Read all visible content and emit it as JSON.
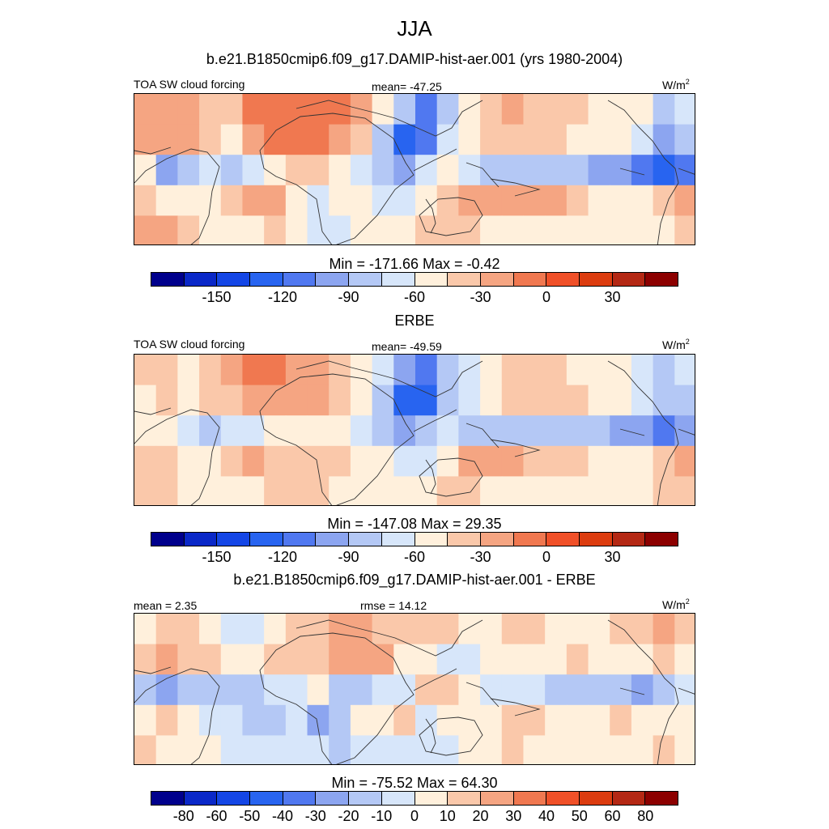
{
  "title": "JJA",
  "subtitle_model": "b.e21.B1850cmip6.f09_g17.DAMIP-hist-aer.001 (yrs 1980-2004)",
  "subtitle_obs": "ERBE",
  "subtitle_diff": "b.e21.B1850cmip6.f09_g17.DAMIP-hist-aer.001 - ERBE",
  "units_base": "W/m",
  "units_exp": "2",
  "colors": {
    "abs": [
      "#00008c",
      "#0a28c8",
      "#1446e6",
      "#2864f0",
      "#5078f0",
      "#8ca5f0",
      "#b4c8f5",
      "#d7e6fa",
      "#fff0dc",
      "#fac8aa",
      "#f5a582",
      "#f07850",
      "#f05028",
      "#dc3c0f",
      "#b42814",
      "#8c0000"
    ],
    "diff": [
      "#00008c",
      "#0a28c8",
      "#1446e6",
      "#2864f0",
      "#5078f0",
      "#8ca5f0",
      "#b4c8f5",
      "#d7e6fa",
      "#fff0dc",
      "#fac8aa",
      "#f5a582",
      "#f07850",
      "#f05028",
      "#dc3c0f",
      "#b42814",
      "#8c0000"
    ],
    "land_line": "#333333"
  },
  "chart_data": [
    {
      "type": "heatmap",
      "name": "model",
      "left_label": "TOA SW cloud forcing",
      "center_label": "mean= -47.25",
      "minmax": "Min = -171.66 Max =  -0.42",
      "colorbar_ticks": [
        "-150",
        "-120",
        "-90",
        "-60",
        "-30",
        "0",
        "30"
      ],
      "mean": -47.25,
      "min": -171.66,
      "max": -0.42,
      "levels": [
        -165,
        -150,
        -135,
        -120,
        -105,
        -90,
        -75,
        -60,
        -45,
        -30,
        -15,
        0,
        15,
        30,
        45
      ],
      "cells": [
        [
          -30,
          -20,
          -25,
          -35,
          -45,
          -15,
          -10,
          -5,
          -10,
          -15,
          -30,
          -60,
          -90,
          -120,
          -90,
          -60,
          -40,
          -30,
          -35,
          -45,
          -45,
          -50,
          -55,
          -60,
          -90,
          -75
        ],
        [
          -25,
          -20,
          -30,
          -40,
          -55,
          -20,
          -10,
          -5,
          -10,
          -20,
          -40,
          -90,
          -135,
          -120,
          -75,
          -60,
          -45,
          -40,
          -40,
          -45,
          -50,
          -55,
          -60,
          -75,
          -105,
          -90
        ],
        [
          -60,
          -105,
          -90,
          -75,
          -90,
          -75,
          -60,
          -45,
          -45,
          -60,
          -75,
          -90,
          -105,
          -75,
          -60,
          -75,
          -90,
          -90,
          -90,
          -90,
          -90,
          -105,
          -105,
          -120,
          -135,
          -120
        ],
        [
          -40,
          -50,
          -55,
          -55,
          -45,
          -25,
          -30,
          -50,
          -70,
          -55,
          -60,
          -65,
          -75,
          -55,
          -45,
          -25,
          -20,
          -20,
          -25,
          -30,
          -40,
          -50,
          -60,
          -55,
          -45,
          -25
        ],
        [
          -25,
          -30,
          -40,
          -50,
          -60,
          -55,
          -40,
          -50,
          -70,
          -65,
          -60,
          -55,
          -50,
          -40,
          -35,
          -45,
          -50,
          -50,
          -50,
          -50,
          -55,
          -55,
          -60,
          -55,
          -50,
          -40
        ]
      ]
    },
    {
      "type": "heatmap",
      "name": "ERBE",
      "left_label": "TOA SW cloud forcing",
      "center_label": "mean= -49.59",
      "minmax": "Min = -147.08 Max =  29.35",
      "colorbar_ticks": [
        "-150",
        "-120",
        "-90",
        "-60",
        "-30",
        "0",
        "30"
      ],
      "mean": -49.59,
      "min": -147.08,
      "max": 29.35,
      "levels": [
        -165,
        -150,
        -135,
        -120,
        -105,
        -90,
        -75,
        -60,
        -45,
        -30,
        -15,
        0,
        15,
        30,
        45
      ],
      "cells": [
        [
          -45,
          -40,
          -50,
          -35,
          -25,
          -15,
          -15,
          -20,
          -20,
          -35,
          -55,
          -75,
          -105,
          -120,
          -90,
          -75,
          -60,
          -45,
          -40,
          -45,
          -50,
          -55,
          -60,
          -75,
          -90,
          -70
        ],
        [
          -50,
          -45,
          -55,
          -45,
          -35,
          -20,
          -20,
          -25,
          -30,
          -40,
          -60,
          -90,
          -135,
          -135,
          -90,
          -70,
          -55,
          -45,
          -40,
          -40,
          -45,
          -50,
          -60,
          -70,
          -90,
          -80
        ],
        [
          -55,
          -60,
          -75,
          -80,
          -75,
          -65,
          -60,
          -55,
          -50,
          -60,
          -75,
          -90,
          -105,
          -90,
          -75,
          -80,
          -80,
          -80,
          -80,
          -80,
          -80,
          -90,
          -95,
          -105,
          -120,
          -100
        ],
        [
          -35,
          -40,
          -50,
          -55,
          -45,
          -30,
          -35,
          -45,
          -45,
          -45,
          -55,
          -60,
          -70,
          -65,
          -50,
          -30,
          -25,
          -30,
          -35,
          -35,
          -40,
          -50,
          -55,
          -50,
          -45,
          -30
        ],
        [
          -40,
          -45,
          -50,
          -55,
          -55,
          -50,
          -40,
          -40,
          -45,
          -50,
          -50,
          -55,
          -55,
          -50,
          -40,
          -45,
          -50,
          -55,
          -55,
          -55,
          -55,
          -55,
          -55,
          -50,
          -45,
          -40
        ]
      ]
    },
    {
      "type": "heatmap",
      "name": "difference",
      "left_label": "mean =   2.35",
      "center_label": "rmse =  14.12",
      "minmax": "Min = -75.52 Max =  64.30",
      "colorbar_ticks": [
        "-80",
        "-60",
        "-50",
        "-40",
        "-30",
        "-20",
        "-10",
        "0",
        "10",
        "20",
        "30",
        "40",
        "50",
        "60",
        "80"
      ],
      "mean": 2.35,
      "rmse": 14.12,
      "min": -75.52,
      "max": 64.3,
      "levels": [
        -80,
        -60,
        -50,
        -40,
        -30,
        -20,
        -10,
        0,
        10,
        20,
        30,
        40,
        50,
        60,
        80
      ],
      "cells": [
        [
          5,
          10,
          15,
          0,
          -10,
          -5,
          5,
          10,
          15,
          20,
          25,
          15,
          10,
          15,
          10,
          5,
          5,
          10,
          15,
          0,
          5,
          5,
          10,
          15,
          20,
          10
        ],
        [
          15,
          20,
          15,
          10,
          5,
          5,
          10,
          15,
          10,
          20,
          25,
          20,
          5,
          5,
          -5,
          -5,
          0,
          5,
          5,
          5,
          10,
          5,
          5,
          5,
          10,
          5
        ],
        [
          -15,
          -30,
          -20,
          -15,
          -20,
          -15,
          -5,
          -5,
          5,
          -15,
          -20,
          -5,
          -5,
          10,
          15,
          5,
          -5,
          -10,
          -10,
          -15,
          -15,
          -20,
          -20,
          -25,
          -20,
          -10
        ],
        [
          5,
          10,
          5,
          -5,
          -10,
          -15,
          -15,
          -5,
          -25,
          -15,
          0,
          5,
          10,
          -10,
          5,
          5,
          5,
          10,
          10,
          5,
          5,
          0,
          10,
          5,
          5,
          5
        ],
        [
          10,
          5,
          5,
          5,
          -10,
          -10,
          -10,
          -5,
          -10,
          -15,
          -10,
          -5,
          -5,
          -10,
          -5,
          5,
          5,
          10,
          5,
          0,
          0,
          5,
          5,
          5,
          10,
          5
        ]
      ]
    }
  ]
}
